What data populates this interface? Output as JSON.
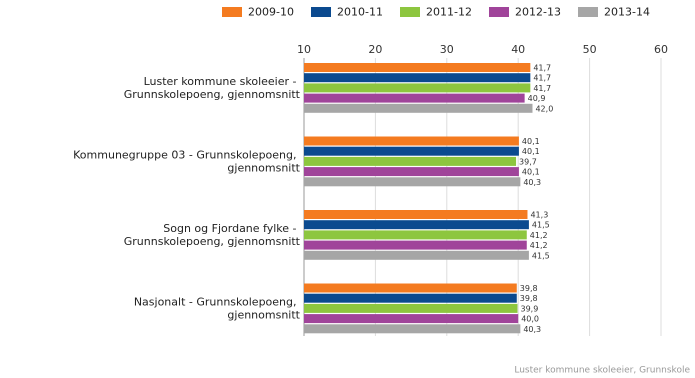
{
  "chart_data": {
    "type": "hbar",
    "categories": [
      "Luster kommune skoleeier - Grunnskolepoeng, gjennomsnitt",
      "Kommunegruppe 03 - Grunnskolepoeng, gjennomsnitt",
      "Sogn og Fjordane fylke - Grunnskolepoeng, gjennomsnitt",
      "Nasjonalt - Grunnskolepoeng, gjennomsnitt"
    ],
    "series": [
      {
        "name": "2009-10",
        "color": "#f47b20",
        "values": [
          41.7,
          40.1,
          41.3,
          39.8
        ],
        "value_labels": [
          "41,7",
          "40,1",
          "41,3",
          "39,8"
        ]
      },
      {
        "name": "2010-11",
        "color": "#0b4a8f",
        "values": [
          41.7,
          40.1,
          41.5,
          39.8
        ],
        "value_labels": [
          "41,7",
          "40,1",
          "41,5",
          "39,8"
        ]
      },
      {
        "name": "2011-12",
        "color": "#8dc63f",
        "values": [
          41.7,
          39.7,
          41.2,
          39.9
        ],
        "value_labels": [
          "41,7",
          "39,7",
          "41,2",
          "39,9"
        ]
      },
      {
        "name": "2012-13",
        "color": "#a0449a",
        "values": [
          40.9,
          40.1,
          41.2,
          40.0
        ],
        "value_labels": [
          "40,9",
          "40,1",
          "41,2",
          "40,0"
        ]
      },
      {
        "name": "2013-14",
        "color": "#a6a6a6",
        "values": [
          42.0,
          40.3,
          41.5,
          40.3
        ],
        "value_labels": [
          "42,0",
          "40,3",
          "41,5",
          "40,3"
        ]
      }
    ],
    "xlim": [
      10,
      60
    ],
    "xticks": [
      10,
      20,
      30,
      40,
      50,
      60
    ],
    "grid": true,
    "source": "Luster kommune skoleeier, Grunnskole"
  }
}
